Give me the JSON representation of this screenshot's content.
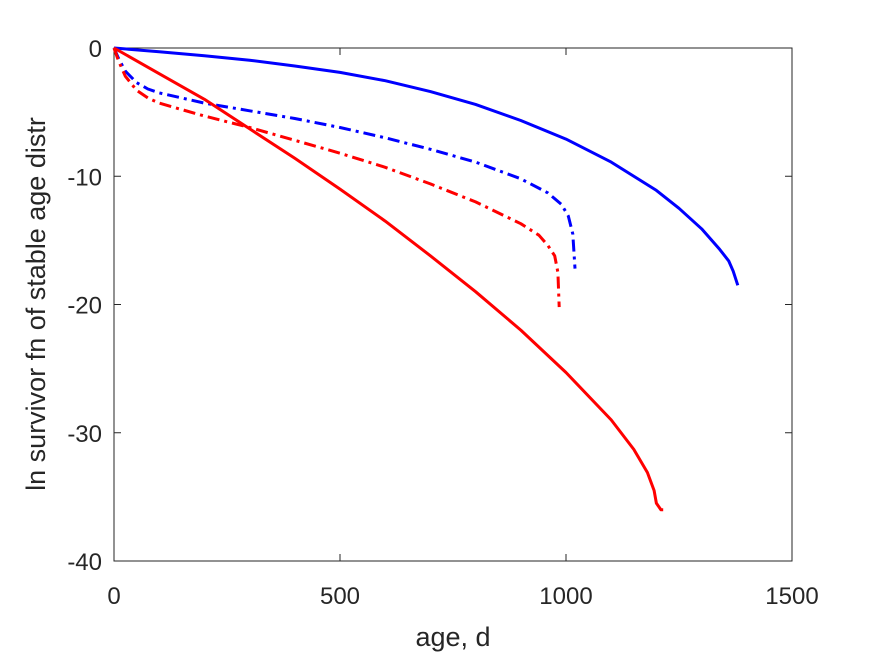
{
  "chart_data": {
    "type": "line",
    "title": "",
    "xlabel": "age, d",
    "ylabel": "ln survivor fn of stable age distr",
    "xlim": [
      0,
      1500
    ],
    "ylim": [
      -40,
      0
    ],
    "xticks": [
      0,
      500,
      1000,
      1500
    ],
    "yticks": [
      0,
      -10,
      -20,
      -30,
      -40
    ],
    "xtick_labels": [
      "0",
      "500",
      "1000",
      "1500"
    ],
    "ytick_labels": [
      "0",
      "-10",
      "-20",
      "-30",
      "-40"
    ],
    "grid": false,
    "legend": "none",
    "series": [
      {
        "color": "#0000ff",
        "style": "solid",
        "x": [
          0,
          100,
          200,
          300,
          400,
          500,
          600,
          700,
          800,
          900,
          1000,
          1100,
          1200,
          1250,
          1300,
          1340,
          1360,
          1370,
          1380
        ],
        "y": [
          0,
          -0.3,
          -0.6,
          -0.95,
          -1.4,
          -1.9,
          -2.55,
          -3.4,
          -4.4,
          -5.65,
          -7.1,
          -8.9,
          -11.1,
          -12.5,
          -14.1,
          -15.7,
          -16.6,
          -17.4,
          -18.5
        ]
      },
      {
        "color": "#0000ff",
        "style": "dashdot",
        "x": [
          0,
          10,
          25,
          50,
          75,
          100,
          150,
          200,
          300,
          400,
          500,
          600,
          700,
          800,
          900,
          960,
          990,
          1005,
          1015,
          1020
        ],
        "y": [
          0,
          -0.8,
          -1.8,
          -2.7,
          -3.2,
          -3.5,
          -3.9,
          -4.3,
          -4.9,
          -5.5,
          -6.2,
          -7.0,
          -7.9,
          -8.9,
          -10.2,
          -11.3,
          -12.2,
          -13.1,
          -14.5,
          -17.2
        ]
      },
      {
        "color": "#ff0000",
        "style": "dashdot",
        "x": [
          0,
          10,
          25,
          50,
          75,
          100,
          150,
          200,
          300,
          400,
          500,
          600,
          700,
          800,
          900,
          940,
          960,
          975,
          982,
          985
        ],
        "y": [
          0,
          -1.0,
          -2.2,
          -3.3,
          -3.9,
          -4.3,
          -4.8,
          -5.3,
          -6.2,
          -7.2,
          -8.2,
          -9.3,
          -10.6,
          -12.0,
          -13.7,
          -14.6,
          -15.4,
          -16.2,
          -17.5,
          -20.2
        ]
      },
      {
        "color": "#ff0000",
        "style": "solid",
        "x": [
          0,
          100,
          200,
          300,
          400,
          500,
          600,
          700,
          800,
          900,
          1000,
          1100,
          1150,
          1180,
          1195,
          1200,
          1210,
          1215
        ],
        "y": [
          0,
          -2.0,
          -4.0,
          -6.3,
          -8.6,
          -11.0,
          -13.5,
          -16.2,
          -19.0,
          -22.0,
          -25.3,
          -29.0,
          -31.3,
          -33.1,
          -34.5,
          -35.5,
          -36.0,
          -36.0
        ]
      }
    ]
  }
}
